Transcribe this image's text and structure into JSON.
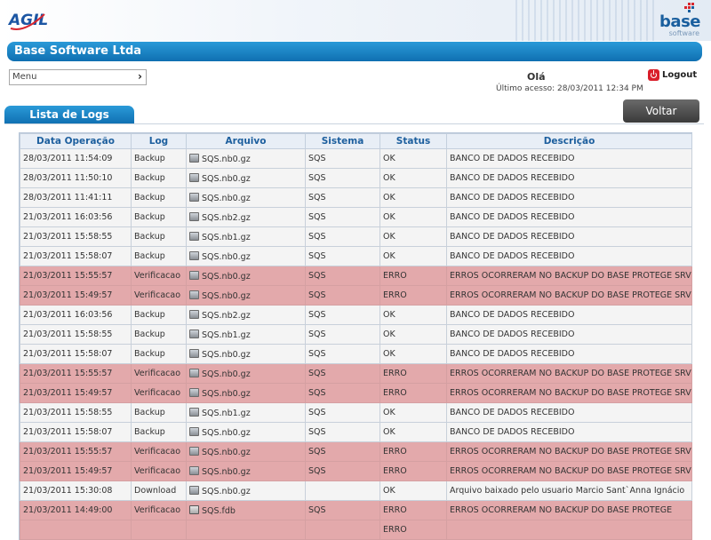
{
  "header": {
    "company_name": "Base Software Ltda",
    "logo_left_text": "AGIL",
    "logo_right_text": "base",
    "logo_right_sub": "software"
  },
  "menu": {
    "label": "Menu",
    "chevron": "›"
  },
  "greeting": {
    "hello": "Olá",
    "last_access": "Último acesso: 28/03/2011   12:34 PM"
  },
  "logout": {
    "label": "Logout",
    "icon": "power-icon"
  },
  "tab": {
    "label": "Lista de Logs"
  },
  "back_button": {
    "label": "Voltar"
  },
  "colors": {
    "accent": "#1a7fc4",
    "error_row": "#e3a9ab",
    "ok_row": "#f4f4f4"
  },
  "table": {
    "columns": [
      "Data Operação",
      "Log",
      "Arquivo",
      "Sistema",
      "Status",
      "Descrição"
    ],
    "rows": [
      {
        "date": "28/03/2011 11:54:09",
        "log": "Backup",
        "file": "SQS.nb0.gz",
        "system": "SQS",
        "status": "OK",
        "description": "BANCO DE DADOS RECEBIDO"
      },
      {
        "date": "28/03/2011 11:50:10",
        "log": "Backup",
        "file": "SQS.nb0.gz",
        "system": "SQS",
        "status": "OK",
        "description": "BANCO DE DADOS RECEBIDO"
      },
      {
        "date": "28/03/2011 11:41:11",
        "log": "Backup",
        "file": "SQS.nb0.gz",
        "system": "SQS",
        "status": "OK",
        "description": "BANCO DE DADOS RECEBIDO"
      },
      {
        "date": "21/03/2011 16:03:56",
        "log": "Backup",
        "file": "SQS.nb2.gz",
        "system": "SQS",
        "status": "OK",
        "description": "BANCO DE DADOS RECEBIDO"
      },
      {
        "date": "21/03/2011 15:58:55",
        "log": "Backup",
        "file": "SQS.nb1.gz",
        "system": "SQS",
        "status": "OK",
        "description": "BANCO DE DADOS RECEBIDO"
      },
      {
        "date": "21/03/2011 15:58:07",
        "log": "Backup",
        "file": "SQS.nb0.gz",
        "system": "SQS",
        "status": "OK",
        "description": "BANCO DE DADOS RECEBIDO"
      },
      {
        "date": "21/03/2011 15:55:57",
        "log": "Verificacao",
        "file": "SQS.nb0.gz",
        "system": "SQS",
        "status": "ERRO",
        "description": "ERROS OCORRERAM NO BACKUP DO BASE PROTEGE SRV"
      },
      {
        "date": "21/03/2011 15:49:57",
        "log": "Verificacao",
        "file": "SQS.nb0.gz",
        "system": "SQS",
        "status": "ERRO",
        "description": "ERROS OCORRERAM NO BACKUP DO BASE PROTEGE SRV"
      },
      {
        "date": "21/03/2011 16:03:56",
        "log": "Backup",
        "file": "SQS.nb2.gz",
        "system": "SQS",
        "status": "OK",
        "description": "BANCO DE DADOS RECEBIDO"
      },
      {
        "date": "21/03/2011 15:58:55",
        "log": "Backup",
        "file": "SQS.nb1.gz",
        "system": "SQS",
        "status": "OK",
        "description": "BANCO DE DADOS RECEBIDO"
      },
      {
        "date": "21/03/2011 15:58:07",
        "log": "Backup",
        "file": "SQS.nb0.gz",
        "system": "SQS",
        "status": "OK",
        "description": "BANCO DE DADOS RECEBIDO"
      },
      {
        "date": "21/03/2011 15:55:57",
        "log": "Verificacao",
        "file": "SQS.nb0.gz",
        "system": "SQS",
        "status": "ERRO",
        "description": "ERROS OCORRERAM NO BACKUP DO BASE PROTEGE SRV"
      },
      {
        "date": "21/03/2011 15:49:57",
        "log": "Verificacao",
        "file": "SQS.nb0.gz",
        "system": "SQS",
        "status": "ERRO",
        "description": "ERROS OCORRERAM NO BACKUP DO BASE PROTEGE SRV"
      },
      {
        "date": "21/03/2011 15:58:55",
        "log": "Backup",
        "file": "SQS.nb1.gz",
        "system": "SQS",
        "status": "OK",
        "description": "BANCO DE DADOS RECEBIDO"
      },
      {
        "date": "21/03/2011 15:58:07",
        "log": "Backup",
        "file": "SQS.nb0.gz",
        "system": "SQS",
        "status": "OK",
        "description": "BANCO DE DADOS RECEBIDO"
      },
      {
        "date": "21/03/2011 15:55:57",
        "log": "Verificacao",
        "file": "SQS.nb0.gz",
        "system": "SQS",
        "status": "ERRO",
        "description": "ERROS OCORRERAM NO BACKUP DO BASE PROTEGE SRV"
      },
      {
        "date": "21/03/2011 15:49:57",
        "log": "Verificacao",
        "file": "SQS.nb0.gz",
        "system": "SQS",
        "status": "ERRO",
        "description": "ERROS OCORRERAM NO BACKUP DO BASE PROTEGE SRV"
      },
      {
        "date": "21/03/2011 15:30:08",
        "log": "Download",
        "file": "SQS.nb0.gz",
        "system": "",
        "status": "OK",
        "description": "Arquivo baixado pelo usuario Marcio Sant`Anna Ignácio"
      },
      {
        "date": "21/03/2011 14:49:00",
        "log": "Verificacao",
        "file": "SQS.fdb",
        "system": "SQS",
        "status": "ERRO",
        "description": "ERROS OCORRERAM NO BACKUP DO BASE PROTEGE"
      },
      {
        "date": "",
        "log": "",
        "file": "",
        "system": "",
        "status": "ERRO",
        "description": ""
      }
    ]
  }
}
